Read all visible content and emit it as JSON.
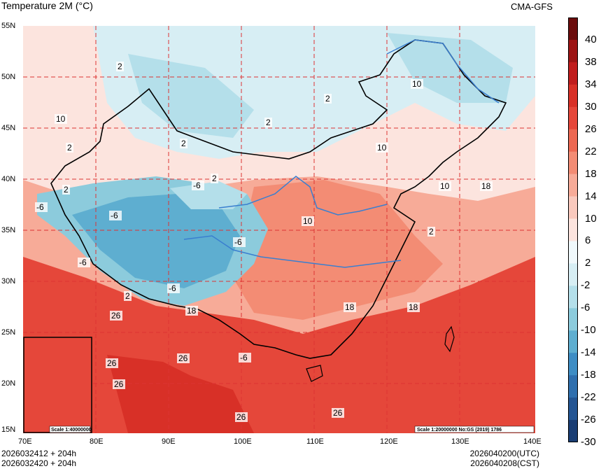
{
  "header": {
    "title": "Temperature 2M (°C)",
    "model": "CMA-GFS"
  },
  "footer": {
    "init_utc": "2026032412 + 204h",
    "init_cst": "2026032420 + 204h",
    "valid_utc": "2026040200(UTC)",
    "valid_cst": "2026040208(CST)"
  },
  "axes": {
    "lat_labels": [
      "55N",
      "50N",
      "45N",
      "40N",
      "35N",
      "30N",
      "25N",
      "20N",
      "15N"
    ],
    "lon_labels": [
      "70E",
      "80E",
      "90E",
      "100E",
      "110E",
      "120E",
      "130E",
      "140E"
    ]
  },
  "colorbar": {
    "labels": [
      "40",
      "38",
      "34",
      "30",
      "26",
      "22",
      "18",
      "14",
      "10",
      "6",
      "2",
      "-2",
      "-6",
      "-10",
      "-14",
      "-18",
      "-22",
      "-26",
      "-30"
    ],
    "colors": [
      "#6b0c0c",
      "#9c1414",
      "#c01d1d",
      "#d83027",
      "#e5473a",
      "#ed6852",
      "#f38c74",
      "#f7ab98",
      "#f9c9bd",
      "#fce4de",
      "#f0f8fb",
      "#d7eef4",
      "#b4dfea",
      "#8ccbdc",
      "#5eaed0",
      "#3e8dc4",
      "#2f6fae",
      "#245593",
      "#1a3d73"
    ]
  },
  "contour_labels": [
    "2",
    "2",
    "2",
    "2",
    "10",
    "2",
    "2",
    "-6",
    "-6",
    "-6",
    "2",
    "-6",
    "10",
    "2",
    "-6",
    "18",
    "26",
    "26",
    "26",
    "26",
    "18",
    "18",
    "18",
    "10",
    "10",
    "10",
    "-6",
    "2",
    "-6",
    "26",
    "26"
  ],
  "scale": {
    "main": "Scale 1:20000000 No:GS (2019) 1786",
    "inset": "Scale 1:40000000"
  }
}
